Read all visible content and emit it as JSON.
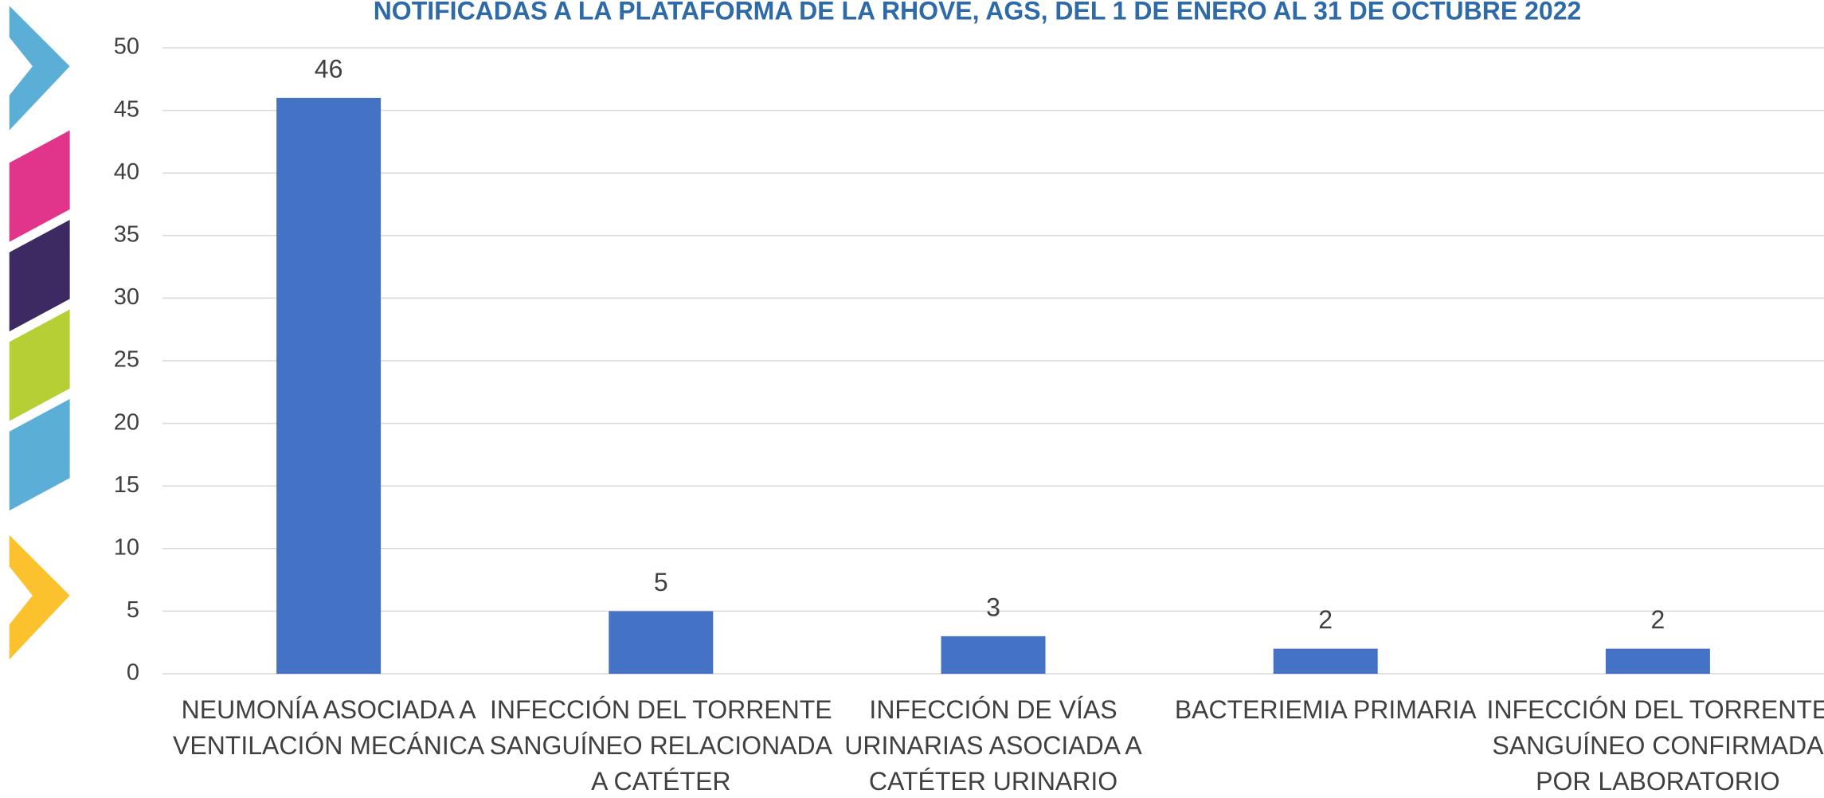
{
  "chart_data": {
    "type": "bar",
    "title": "NOTIFICADAS A LA PLATAFORMA DE LA RHOVE, AGS, DEL 1 DE ENERO AL 31 DE OCTUBRE 2022",
    "categories": [
      [
        "NEUMONÍA ASOCIADA A",
        "VENTILACIÓN MECÁNICA"
      ],
      [
        "INFECCIÓN DEL TORRENTE",
        "SANGUÍNEO RELACIONADA",
        "A CATÉTER"
      ],
      [
        "INFECCIÓN DE VÍAS",
        "URINARIAS ASOCIADA A",
        "CATÉTER URINARIO"
      ],
      [
        "BACTERIEMIA PRIMARIA"
      ],
      [
        "INFECCIÓN DEL TORRENTE",
        "SANGUÍNEO CONFIRMADA",
        "POR LABORATORIO"
      ]
    ],
    "values": [
      46,
      5,
      3,
      2,
      2
    ],
    "color": "#4472c4",
    "ylim": [
      0,
      50
    ],
    "yticks": [
      0,
      5,
      10,
      15,
      20,
      25,
      30,
      35,
      40,
      45,
      50
    ],
    "grid": true
  }
}
